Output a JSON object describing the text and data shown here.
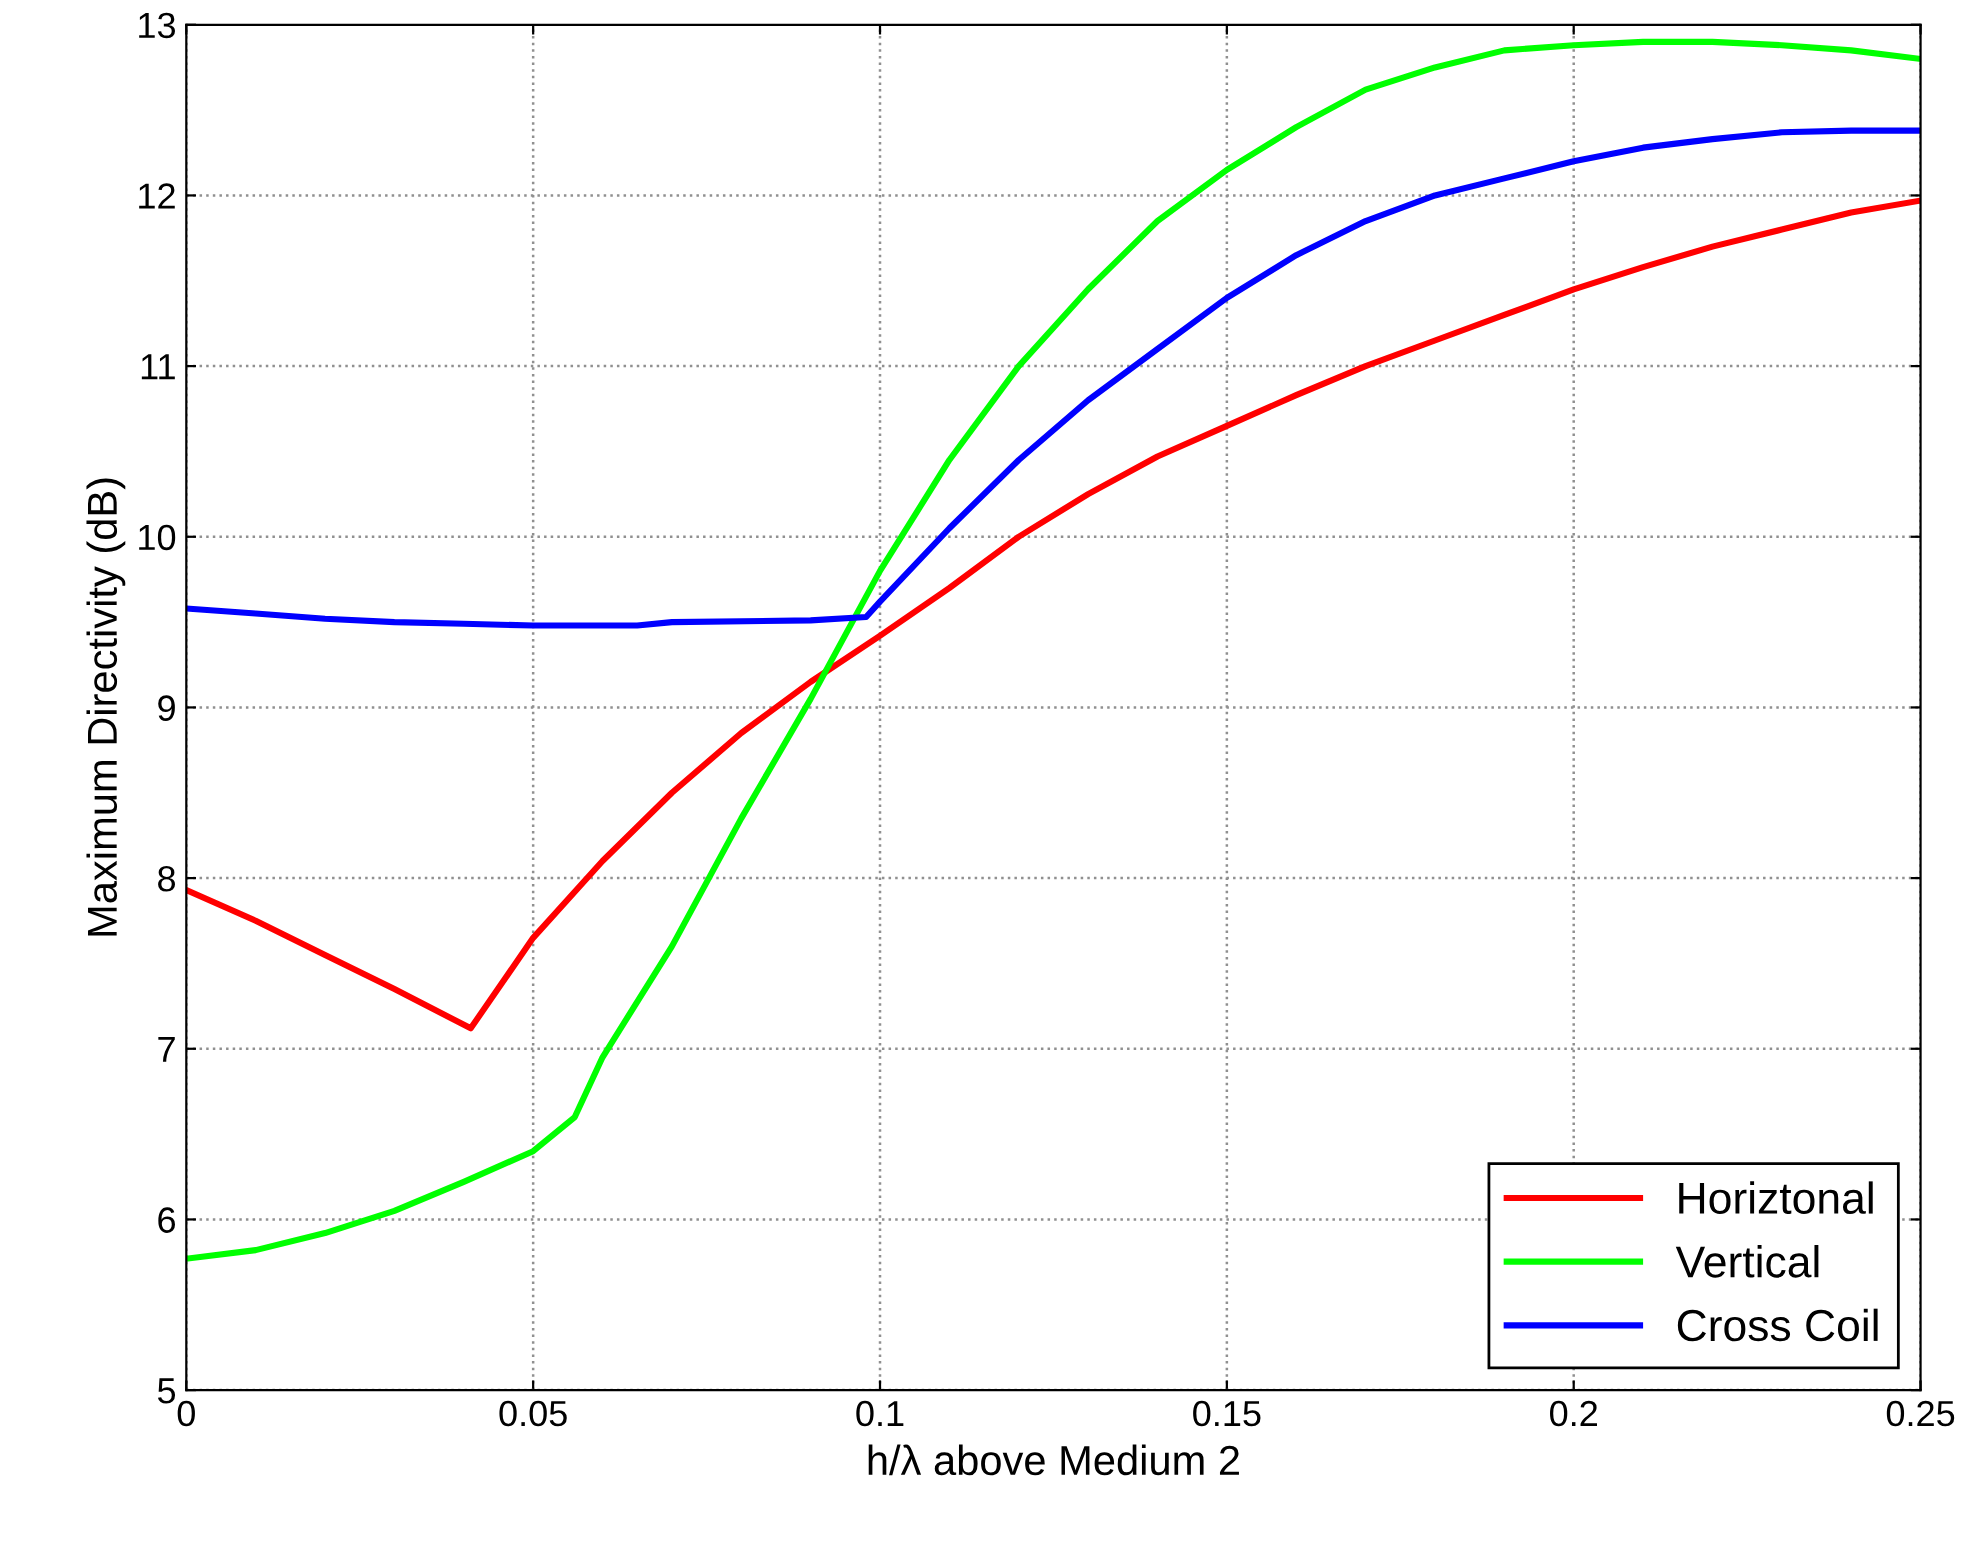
{
  "chart_data": {
    "type": "line",
    "xlabel": "h/λ above Medium 2",
    "ylabel": "Maximum Directivity (dB)",
    "xlim": [
      0,
      0.25
    ],
    "ylim": [
      5,
      13
    ],
    "xticks": [
      0,
      0.05,
      0.1,
      0.15,
      0.2,
      0.25
    ],
    "yticks": [
      5,
      6,
      7,
      8,
      9,
      10,
      11,
      12,
      13
    ],
    "grid": true,
    "legend": "bottom right",
    "line_style": "solid",
    "marker": "none",
    "series": [
      {
        "name": "Horiztonal",
        "color": "#ff0000",
        "x": [
          0,
          0.01,
          0.02,
          0.03,
          0.041,
          0.05,
          0.06,
          0.07,
          0.08,
          0.09,
          0.1,
          0.11,
          0.12,
          0.13,
          0.14,
          0.15,
          0.16,
          0.17,
          0.18,
          0.19,
          0.2,
          0.21,
          0.22,
          0.23,
          0.24,
          0.25
        ],
        "values": [
          7.93,
          7.75,
          7.55,
          7.35,
          7.12,
          7.65,
          8.1,
          8.5,
          8.85,
          9.15,
          9.42,
          9.7,
          10.0,
          10.25,
          10.47,
          10.65,
          10.83,
          11.0,
          11.15,
          11.3,
          11.45,
          11.58,
          11.7,
          11.8,
          11.9,
          11.97
        ]
      },
      {
        "name": "Vertical",
        "color": "#00ff00",
        "x": [
          0,
          0.01,
          0.02,
          0.03,
          0.04,
          0.05,
          0.056,
          0.06,
          0.07,
          0.08,
          0.09,
          0.1,
          0.11,
          0.12,
          0.13,
          0.14,
          0.15,
          0.16,
          0.17,
          0.18,
          0.19,
          0.2,
          0.21,
          0.22,
          0.23,
          0.24,
          0.25
        ],
        "values": [
          5.77,
          5.82,
          5.92,
          6.05,
          6.22,
          6.4,
          6.6,
          6.95,
          7.6,
          8.35,
          9.05,
          9.8,
          10.45,
          11.0,
          11.45,
          11.85,
          12.15,
          12.4,
          12.62,
          12.75,
          12.85,
          12.88,
          12.9,
          12.9,
          12.88,
          12.85,
          12.8
        ]
      },
      {
        "name": "Cross Coil",
        "color": "#0000ff",
        "x": [
          0,
          0.01,
          0.02,
          0.03,
          0.04,
          0.05,
          0.065,
          0.07,
          0.09,
          0.098,
          0.1,
          0.11,
          0.12,
          0.13,
          0.14,
          0.15,
          0.16,
          0.17,
          0.18,
          0.19,
          0.2,
          0.21,
          0.22,
          0.23,
          0.24,
          0.25
        ],
        "values": [
          9.58,
          9.55,
          9.52,
          9.5,
          9.49,
          9.48,
          9.48,
          9.5,
          9.51,
          9.53,
          9.62,
          10.05,
          10.45,
          10.8,
          11.1,
          11.4,
          11.65,
          11.85,
          12.0,
          12.1,
          12.2,
          12.28,
          12.33,
          12.37,
          12.38,
          12.38
        ]
      }
    ]
  }
}
